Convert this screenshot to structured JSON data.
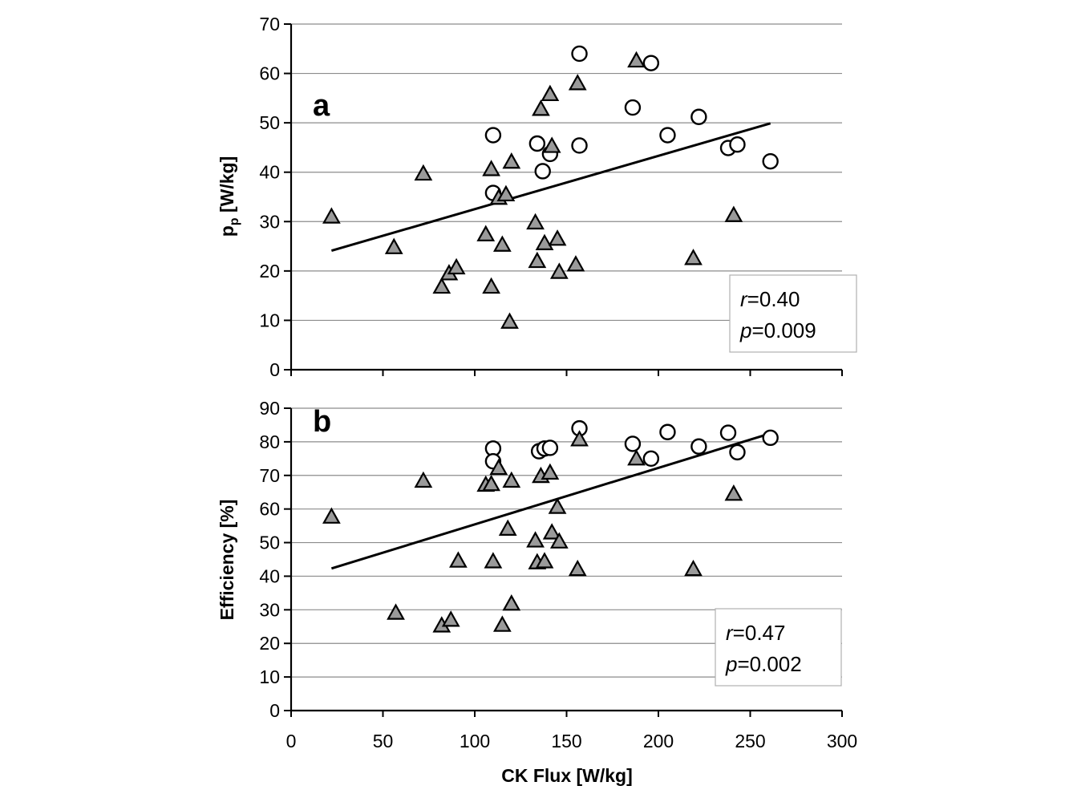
{
  "figure": {
    "xlabel": "CK Flux [W/kg]",
    "x_ticks": [
      "0",
      "50",
      "100",
      "150",
      "200",
      "250",
      "300"
    ]
  },
  "chart_data": [
    {
      "panel": "a",
      "type": "scatter",
      "ylabel_main": "p",
      "ylabel_sub": "p",
      "ylabel_rest": " [W/kg]",
      "xlim": [
        0,
        300
      ],
      "ylim": [
        0,
        70
      ],
      "y_ticks": [
        "0",
        "10",
        "20",
        "30",
        "40",
        "50",
        "60",
        "70"
      ],
      "grid": true,
      "series": [
        {
          "name": "circles",
          "marker": "circle",
          "points": [
            [
              110,
              47.5
            ],
            [
              134,
              45.8
            ],
            [
              141,
              43.7
            ],
            [
              137,
              40.2
            ],
            [
              110,
              35.8
            ],
            [
              157,
              64
            ],
            [
              157,
              45.4
            ],
            [
              186,
              53.1
            ],
            [
              196,
              62.1
            ],
            [
              205,
              47.5
            ],
            [
              222,
              51.2
            ],
            [
              238,
              44.9
            ],
            [
              243,
              45.6
            ],
            [
              261,
              42.2
            ]
          ]
        },
        {
          "name": "triangles",
          "marker": "triangle",
          "points": [
            [
              22,
              31
            ],
            [
              56,
              24.8
            ],
            [
              72,
              39.7
            ],
            [
              82,
              16.8
            ],
            [
              86,
              19.5
            ],
            [
              90,
              20.7
            ],
            [
              106,
              27.4
            ],
            [
              109,
              16.8
            ],
            [
              109,
              40.6
            ],
            [
              113,
              34.8
            ],
            [
              115,
              25.3
            ],
            [
              117,
              35.5
            ],
            [
              119,
              9.7
            ],
            [
              120,
              42.1
            ],
            [
              133,
              29.8
            ],
            [
              134,
              22
            ],
            [
              136,
              52.8
            ],
            [
              138,
              25.6
            ],
            [
              141,
              55.8
            ],
            [
              142,
              45.3
            ],
            [
              145,
              26.5
            ],
            [
              146,
              19.8
            ],
            [
              155,
              21.3
            ],
            [
              156,
              58
            ],
            [
              188,
              62.6
            ],
            [
              219,
              22.6
            ],
            [
              241,
              31.3
            ]
          ]
        }
      ],
      "regression": {
        "x": [
          22,
          261
        ],
        "y": [
          24.1,
          49.9
        ]
      },
      "stats": {
        "r_label": "r",
        "r_value": "=0.40",
        "p_label": "p",
        "p_value": "=0.009"
      }
    },
    {
      "panel": "b",
      "type": "scatter",
      "ylabel": "Efficiency [%]",
      "xlim": [
        0,
        300
      ],
      "ylim": [
        0,
        90
      ],
      "y_ticks": [
        "0",
        "10",
        "20",
        "30",
        "40",
        "50",
        "60",
        "70",
        "80",
        "90"
      ],
      "grid": true,
      "series": [
        {
          "name": "circles",
          "marker": "circle",
          "points": [
            [
              110,
              78
            ],
            [
              110,
              74.2
            ],
            [
              135,
              77.2
            ],
            [
              138,
              78
            ],
            [
              141,
              78.2
            ],
            [
              157,
              84
            ],
            [
              186,
              79.4
            ],
            [
              196,
              75
            ],
            [
              205,
              82.9
            ],
            [
              222,
              78.6
            ],
            [
              238,
              82.7
            ],
            [
              243,
              76.9
            ],
            [
              261,
              81.2
            ]
          ]
        },
        {
          "name": "triangles",
          "marker": "triangle",
          "points": [
            [
              22,
              57.7
            ],
            [
              57,
              29.1
            ],
            [
              72,
              68.4
            ],
            [
              82,
              25.3
            ],
            [
              87,
              27
            ],
            [
              91,
              44.6
            ],
            [
              106,
              67.2
            ],
            [
              109,
              67.4
            ],
            [
              110,
              44.4
            ],
            [
              113,
              72.2
            ],
            [
              115,
              25.5
            ],
            [
              118,
              54.1
            ],
            [
              120,
              31.8
            ],
            [
              120,
              68.4
            ],
            [
              133,
              50.6
            ],
            [
              134,
              44.1
            ],
            [
              136,
              69.8
            ],
            [
              138,
              44.4
            ],
            [
              141,
              70.8
            ],
            [
              142,
              53
            ],
            [
              145,
              60.6
            ],
            [
              146,
              50.3
            ],
            [
              156,
              42.1
            ],
            [
              157,
              80.7
            ],
            [
              188,
              75
            ],
            [
              219,
              42.1
            ],
            [
              241,
              64.5
            ]
          ]
        }
      ],
      "regression": {
        "x": [
          22,
          261
        ],
        "y": [
          42.3,
          82.5
        ]
      },
      "stats": {
        "r_label": "r",
        "r_value": "=0.47",
        "p_label": "p",
        "p_value": "=0.002"
      }
    }
  ]
}
